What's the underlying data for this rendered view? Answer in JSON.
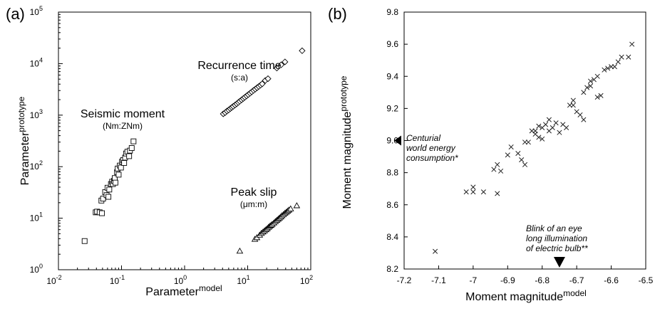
{
  "chart_data": [
    {
      "type": "scatter",
      "panel_label": "(a)",
      "xlabel": "Parameter",
      "xlabel_sup": "model",
      "ylabel": "Parameter",
      "ylabel_sup": "prototype",
      "xscale": "log",
      "yscale": "log",
      "xlim": [
        0.01,
        100
      ],
      "ylim": [
        1,
        100000
      ],
      "x_ticks": [
        {
          "base": "10",
          "exp": "-2"
        },
        {
          "base": "10",
          "exp": "-1"
        },
        {
          "base": "10",
          "exp": "0"
        },
        {
          "base": "10",
          "exp": "1"
        },
        {
          "base": "10",
          "exp": "2"
        }
      ],
      "y_ticks": [
        {
          "base": "10",
          "exp": "0"
        },
        {
          "base": "10",
          "exp": "1"
        },
        {
          "base": "10",
          "exp": "2"
        },
        {
          "base": "10",
          "exp": "3"
        },
        {
          "base": "10",
          "exp": "4"
        },
        {
          "base": "10",
          "exp": "5"
        }
      ],
      "grid": false,
      "series": [
        {
          "name": "Seismic moment",
          "units": "(Nm:ZNm)",
          "marker": "square",
          "points": [
            [
              0.026,
              3.6
            ],
            [
              0.039,
              13
            ],
            [
              0.041,
              13.4
            ],
            [
              0.045,
              13
            ],
            [
              0.049,
              12.5
            ],
            [
              0.048,
              22
            ],
            [
              0.051,
              24
            ],
            [
              0.055,
              32
            ],
            [
              0.058,
              28
            ],
            [
              0.06,
              39
            ],
            [
              0.062,
              26
            ],
            [
              0.064,
              36
            ],
            [
              0.068,
              46
            ],
            [
              0.071,
              51
            ],
            [
              0.073,
              46
            ],
            [
              0.076,
              53
            ],
            [
              0.078,
              60
            ],
            [
              0.08,
              49
            ],
            [
              0.085,
              78
            ],
            [
              0.087,
              92
            ],
            [
              0.09,
              70
            ],
            [
              0.094,
              105
            ],
            [
              0.098,
              96
            ],
            [
              0.102,
              125
            ],
            [
              0.106,
              134
            ],
            [
              0.11,
              118
            ],
            [
              0.114,
              150
            ],
            [
              0.118,
              180
            ],
            [
              0.124,
              195
            ],
            [
              0.132,
              160
            ],
            [
              0.136,
              205
            ],
            [
              0.145,
              230
            ],
            [
              0.155,
              310
            ]
          ]
        },
        {
          "name": "Recurrence time",
          "units": "(s:a)",
          "marker": "diamond",
          "points": [
            [
              4.1,
              1060
            ],
            [
              4.4,
              1120
            ],
            [
              4.7,
              1200
            ],
            [
              5.0,
              1260
            ],
            [
              5.3,
              1340
            ],
            [
              5.6,
              1410
            ],
            [
              5.9,
              1480
            ],
            [
              6.3,
              1570
            ],
            [
              6.7,
              1660
            ],
            [
              7.1,
              1760
            ],
            [
              7.5,
              1860
            ],
            [
              8.0,
              1980
            ],
            [
              8.5,
              2100
            ],
            [
              9.0,
              2220
            ],
            [
              9.6,
              2360
            ],
            [
              10.2,
              2500
            ],
            [
              10.9,
              2660
            ],
            [
              11.6,
              2830
            ],
            [
              12.4,
              3020
            ],
            [
              13.2,
              3200
            ],
            [
              14.1,
              3400
            ],
            [
              15.0,
              3600
            ],
            [
              16.0,
              3820
            ],
            [
              17.0,
              4050
            ],
            [
              19.0,
              4700
            ],
            [
              21.0,
              5100
            ],
            [
              29.0,
              8200
            ],
            [
              34.0,
              9500
            ],
            [
              39.0,
              10800
            ],
            [
              73.0,
              17800
            ]
          ]
        },
        {
          "name": "Peak slip",
          "units": "(μm:m)",
          "marker": "triangle",
          "points": [
            [
              7.5,
              2.3
            ],
            [
              13.0,
              3.9
            ],
            [
              14.0,
              4.2
            ],
            [
              15.5,
              4.7
            ],
            [
              16.5,
              5.1
            ],
            [
              17.5,
              5.4
            ],
            [
              18.5,
              5.7
            ],
            [
              19.5,
              6.0
            ],
            [
              20.5,
              6.3
            ],
            [
              21.5,
              6.7
            ],
            [
              22.5,
              7.0
            ],
            [
              23.5,
              7.3
            ],
            [
              24.5,
              7.6
            ],
            [
              26.0,
              8.1
            ],
            [
              27.5,
              8.6
            ],
            [
              29.0,
              9.1
            ],
            [
              30.5,
              9.6
            ],
            [
              32.0,
              10.1
            ],
            [
              33.5,
              10.6
            ],
            [
              35.0,
              11.2
            ],
            [
              37.0,
              11.8
            ],
            [
              39.0,
              12.5
            ],
            [
              41.0,
              13.1
            ],
            [
              43.0,
              13.7
            ],
            [
              45.0,
              14.4
            ],
            [
              48.0,
              15.2
            ],
            [
              60.0,
              17.5
            ]
          ]
        }
      ]
    },
    {
      "type": "scatter",
      "panel_label": "(b)",
      "xlabel": "Moment magnitude",
      "xlabel_sup": "model",
      "ylabel": "Moment magnitude",
      "ylabel_sup": "prototype",
      "xlim": [
        -7.2,
        -6.5
      ],
      "ylim": [
        8.2,
        9.8
      ],
      "x_ticks": [
        "-7.2",
        "-7.1",
        "-7",
        "-6.9",
        "-6.8",
        "-6.7",
        "-6.6",
        "-6.5"
      ],
      "y_ticks": [
        "8.2",
        "8.4",
        "8.6",
        "8.8",
        "9.0",
        "9.2",
        "9.4",
        "9.6",
        "9.8"
      ],
      "grid": false,
      "marker": "x",
      "points": [
        [
          -7.11,
          8.31
        ],
        [
          -7.02,
          8.68
        ],
        [
          -7.0,
          8.71
        ],
        [
          -7.0,
          8.68
        ],
        [
          -6.97,
          8.68
        ],
        [
          -6.94,
          8.82
        ],
        [
          -6.93,
          8.85
        ],
        [
          -6.93,
          8.67
        ],
        [
          -6.92,
          8.81
        ],
        [
          -6.9,
          8.91
        ],
        [
          -6.89,
          8.96
        ],
        [
          -6.87,
          8.92
        ],
        [
          -6.86,
          8.88
        ],
        [
          -6.85,
          8.99
        ],
        [
          -6.84,
          8.99
        ],
        [
          -6.83,
          9.06
        ],
        [
          -6.82,
          9.06
        ],
        [
          -6.82,
          9.04
        ],
        [
          -6.81,
          9.02
        ],
        [
          -6.8,
          9.01
        ],
        [
          -6.81,
          9.09
        ],
        [
          -6.8,
          9.08
        ],
        [
          -6.79,
          9.1
        ],
        [
          -6.78,
          9.06
        ],
        [
          -6.78,
          9.13
        ],
        [
          -6.77,
          9.08
        ],
        [
          -6.76,
          9.11
        ],
        [
          -6.75,
          9.05
        ],
        [
          -6.74,
          9.1
        ],
        [
          -6.73,
          9.08
        ],
        [
          -6.72,
          9.22
        ],
        [
          -6.71,
          9.22
        ],
        [
          -6.71,
          9.25
        ],
        [
          -6.7,
          9.18
        ],
        [
          -6.69,
          9.16
        ],
        [
          -6.68,
          9.13
        ],
        [
          -6.68,
          9.3
        ],
        [
          -6.67,
          9.33
        ],
        [
          -6.66,
          9.37
        ],
        [
          -6.66,
          9.34
        ],
        [
          -6.65,
          9.38
        ],
        [
          -6.64,
          9.27
        ],
        [
          -6.64,
          9.4
        ],
        [
          -6.63,
          9.28
        ],
        [
          -6.62,
          9.44
        ],
        [
          -6.61,
          9.45
        ],
        [
          -6.6,
          9.46
        ],
        [
          -6.59,
          9.46
        ],
        [
          -6.58,
          9.49
        ],
        [
          -6.57,
          9.52
        ],
        [
          -6.55,
          9.52
        ],
        [
          -6.54,
          9.6
        ],
        [
          -6.85,
          8.85
        ]
      ],
      "annotations": [
        {
          "id": "centurial",
          "lines": [
            "Centurial",
            "world energy",
            "consumption*"
          ],
          "marker_axis": "y",
          "marker_value": 9.0
        },
        {
          "id": "blink",
          "lines": [
            "Blink of an eye",
            "long illumination",
            "of electric bulb**"
          ],
          "marker_axis": "x",
          "marker_value": -6.75
        }
      ]
    }
  ]
}
